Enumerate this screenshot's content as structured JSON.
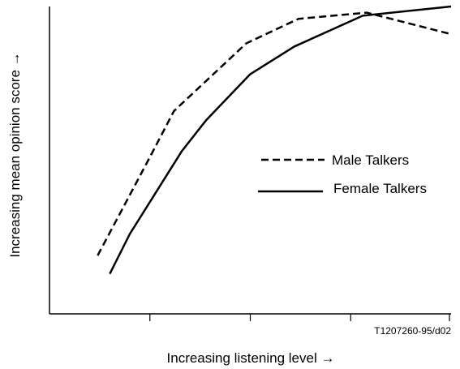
{
  "chart_data": {
    "type": "line",
    "title": "",
    "xlabel": "Increasing listening level →",
    "ylabel": "Increasing mean opinion score →",
    "reference_code": "T1207260-95/d02",
    "xlim": [
      0,
      1
    ],
    "ylim": [
      0,
      1
    ],
    "x_ticks": [
      0.25,
      0.5,
      0.75,
      1.0
    ],
    "grid": false,
    "legend_position": "center-right",
    "series": [
      {
        "name": "Male Talkers",
        "style": "dashed",
        "color": "#000000",
        "x": [
          0.12,
          0.25,
          0.31,
          0.4,
          0.49,
          0.62,
          0.79,
          1.0
        ],
        "y": [
          0.19,
          0.51,
          0.66,
          0.77,
          0.88,
          0.96,
          0.98,
          0.91
        ]
      },
      {
        "name": "Female Talkers",
        "style": "solid",
        "color": "#000000",
        "x": [
          0.15,
          0.2,
          0.33,
          0.39,
          0.5,
          0.61,
          0.78,
          1.0
        ],
        "y": [
          0.13,
          0.26,
          0.53,
          0.63,
          0.78,
          0.87,
          0.97,
          1.0
        ]
      }
    ]
  }
}
